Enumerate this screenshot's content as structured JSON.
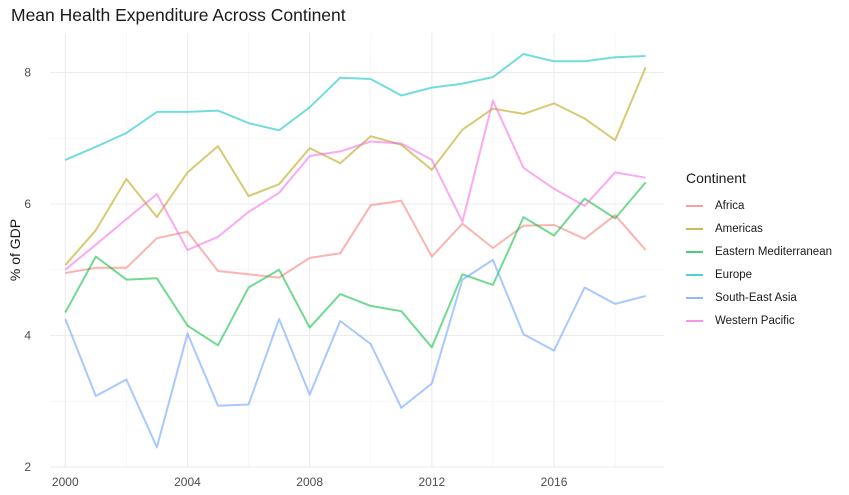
{
  "chart_data": {
    "type": "line",
    "title": "Mean Health Expenditure Across Continent",
    "xlabel": "",
    "ylabel": "% of GDP",
    "x": [
      2000,
      2001,
      2002,
      2003,
      2004,
      2005,
      2006,
      2007,
      2008,
      2009,
      2010,
      2011,
      2012,
      2013,
      2014,
      2015,
      2016,
      2017,
      2018,
      2019
    ],
    "x_ticks": [
      "2000",
      "2004",
      "2008",
      "2012",
      "2016"
    ],
    "y_ticks": [
      "2",
      "4",
      "6",
      "8"
    ],
    "xlim": [
      1999.5,
      2019.6
    ],
    "ylim": [
      2.0,
      8.6
    ],
    "grid": true,
    "legend": {
      "title": "Continent",
      "placement": "right"
    },
    "series": [
      {
        "name": "Africa",
        "color": "#F8766D",
        "values": [
          4.95,
          5.03,
          5.03,
          5.48,
          5.58,
          4.98,
          4.93,
          4.88,
          5.18,
          5.25,
          5.98,
          6.05,
          5.2,
          5.7,
          5.33,
          5.67,
          5.68,
          5.47,
          5.83,
          5.3
        ]
      },
      {
        "name": "Americas",
        "color": "#B79F00",
        "values": [
          5.07,
          5.6,
          6.38,
          5.8,
          6.48,
          6.88,
          6.12,
          6.3,
          6.85,
          6.62,
          7.03,
          6.9,
          6.52,
          7.13,
          7.45,
          7.37,
          7.53,
          7.3,
          6.97,
          8.08
        ]
      },
      {
        "name": "Eastern Mediterranean",
        "color": "#00BA38",
        "values": [
          4.35,
          5.2,
          4.85,
          4.87,
          4.15,
          3.85,
          4.73,
          5.0,
          4.12,
          4.63,
          4.45,
          4.37,
          3.82,
          4.93,
          4.77,
          5.8,
          5.52,
          6.08,
          5.78,
          6.33
        ]
      },
      {
        "name": "Europe",
        "color": "#00BFC4",
        "values": [
          6.67,
          6.87,
          7.08,
          7.4,
          7.4,
          7.42,
          7.23,
          7.12,
          7.47,
          7.92,
          7.9,
          7.65,
          7.77,
          7.83,
          7.93,
          8.28,
          8.17,
          8.17,
          8.23,
          8.25
        ]
      },
      {
        "name": "South-East Asia",
        "color": "#619CFF",
        "values": [
          4.25,
          3.08,
          3.33,
          2.3,
          4.03,
          2.93,
          2.95,
          4.25,
          3.1,
          4.22,
          3.87,
          2.9,
          3.27,
          4.85,
          5.15,
          4.02,
          3.77,
          4.73,
          4.48,
          4.6
        ]
      },
      {
        "name": "Western Pacific",
        "color": "#F564E3",
        "values": [
          5.0,
          5.38,
          5.77,
          6.15,
          5.3,
          5.5,
          5.88,
          6.17,
          6.73,
          6.8,
          6.95,
          6.92,
          6.67,
          5.73,
          7.57,
          6.55,
          6.23,
          5.97,
          6.48,
          6.4
        ]
      }
    ]
  }
}
